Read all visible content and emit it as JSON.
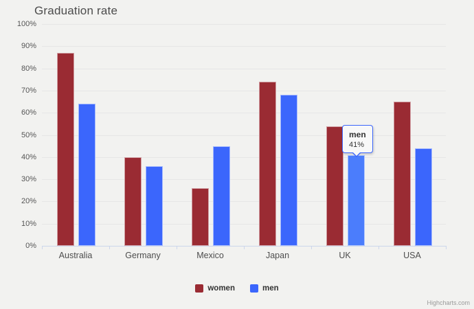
{
  "page": {
    "background": "#f2f2f0"
  },
  "credits": "Highcharts.com",
  "chart_data": {
    "type": "bar",
    "title": "Graduation rate",
    "categories": [
      "Australia",
      "Germany",
      "Mexico",
      "Japan",
      "UK",
      "USA"
    ],
    "series": [
      {
        "name": "women",
        "color": "#9a2b33",
        "values": [
          87,
          40,
          26,
          74,
          54,
          65
        ]
      },
      {
        "name": "men",
        "color": "#3b66fc",
        "values": [
          64,
          36,
          45,
          68,
          41,
          44
        ]
      }
    ],
    "xlabel": "",
    "ylabel": "",
    "ylim": [
      0,
      100
    ],
    "ytick_step": 10,
    "yticks": [
      "0%",
      "10%",
      "20%",
      "30%",
      "40%",
      "50%",
      "60%",
      "70%",
      "80%",
      "90%",
      "100%"
    ],
    "grid": true,
    "legend_position": "bottom",
    "highlight": {
      "category": "UK",
      "category_index": 4,
      "series": "men",
      "series_index": 1,
      "hover_color": "#4b7dfc"
    },
    "tooltip": {
      "series": "men",
      "value": "41%",
      "category": "UK"
    },
    "colors": {
      "background": "#f2f2f0",
      "gridline": "#e6e6e6",
      "axis_line": "#ccd6eb",
      "title_text": "#4c4c4c",
      "axis_label_text": "#555555",
      "legend_text": "#333333",
      "credits_text": "#999999",
      "tooltip_border": "#3b66fc",
      "tooltip_background": "#f8f8f8"
    }
  }
}
